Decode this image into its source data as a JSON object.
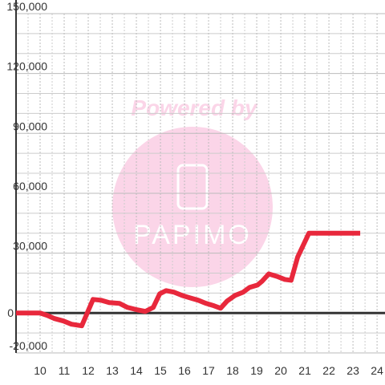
{
  "chart_data": {
    "type": "line",
    "watermark": {
      "text": "Powered by",
      "logo": "PAPIMO"
    },
    "x": [
      9.0,
      10.0,
      10.3,
      10.6,
      10.97,
      11.3,
      11.73,
      12.2,
      12.53,
      12.87,
      13.3,
      13.63,
      14.03,
      14.37,
      14.7,
      14.97,
      15.23,
      15.57,
      15.9,
      16.23,
      16.57,
      16.9,
      17.23,
      17.5,
      17.77,
      18.1,
      18.43,
      18.7,
      19.03,
      19.23,
      19.5,
      19.83,
      20.17,
      20.43,
      20.7,
      21.17,
      23.3
    ],
    "series": [
      {
        "color": "#e8283c",
        "values": [
          0,
          0,
          -1200,
          -2800,
          -4000,
          -5600,
          -6400,
          6800,
          6400,
          5200,
          4800,
          2800,
          1600,
          800,
          2800,
          9600,
          11200,
          10400,
          8800,
          7600,
          6400,
          4800,
          3600,
          2400,
          6000,
          8800,
          10400,
          12800,
          14000,
          16000,
          19600,
          18400,
          16800,
          16400,
          28000,
          40000,
          40000
        ]
      }
    ],
    "xlim": [
      9,
      24.33
    ],
    "xticks": [
      10,
      11,
      12,
      13,
      14,
      15,
      16,
      17,
      18,
      19,
      20,
      21,
      22,
      23,
      24
    ],
    "xminorticks": [
      9.5,
      10.5,
      11.5,
      12.5,
      13.5,
      14.5,
      15.5,
      16.5,
      17.5,
      18.5,
      19.5,
      20.5,
      21.5,
      22.5,
      23.5
    ],
    "ylim": [
      -20000,
      150000
    ],
    "yticks": [
      {
        "value": -20000,
        "label": "-20,000"
      },
      0,
      {
        "value": 30000,
        "label": "30,000"
      },
      {
        "value": 60000,
        "label": "60,000"
      },
      {
        "value": 90000,
        "label": "90,000"
      },
      {
        "value": 120000,
        "label": "120,000"
      },
      {
        "value": 150000,
        "label": "150,000"
      }
    ],
    "yminorticks": [
      -10000,
      10000,
      20000,
      40000,
      50000,
      70000,
      80000,
      100000,
      110000,
      130000,
      140000
    ],
    "grid": true
  }
}
